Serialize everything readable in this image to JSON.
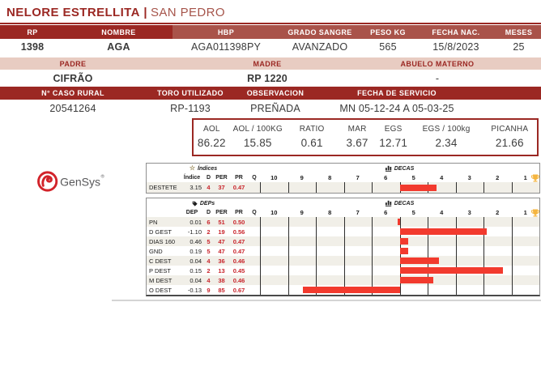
{
  "title": {
    "farm": "NELORE ESTRELLITA",
    "sep": "|",
    "location": "SAN PEDRO"
  },
  "animal_table": {
    "headers": [
      "RP",
      "NOMBRE",
      "HBP",
      "GRADO SANGRE",
      "PESO KG",
      "FECHA NAC.",
      "MESES"
    ],
    "values": [
      "1398",
      "AGA",
      "AGA011398PY",
      "AVANZADO",
      "565",
      "15/8/2023",
      "25"
    ]
  },
  "pedigree_table": {
    "headers": [
      "PADRE",
      "MADRE",
      "ABUELO MATERNO"
    ],
    "values": [
      "CIFRÃO",
      "RP 1220",
      "-"
    ]
  },
  "service_table": {
    "headers": [
      "N° CASO RURAL",
      "TORO UTILIZADO",
      "OBSERVACION",
      "FECHA DE SERVICIO"
    ],
    "values": [
      "20541264",
      "RP-1193",
      "PREÑADA",
      "MN 05-12-24 A 05-03-25"
    ]
  },
  "carcass_panel": {
    "headers": [
      "AOL",
      "AOL / 100KG",
      "RATIO",
      "MAR",
      "EGS",
      "EGS / 100kg",
      "PICANHA"
    ],
    "values": [
      "86.22",
      "15.85",
      "0.61",
      "3.67",
      "12.71",
      "2.34",
      "21.66"
    ]
  },
  "logo": {
    "text": "GenSys",
    "registered": "®"
  },
  "chart_data": [
    {
      "type": "bar",
      "title": "Índices DECAS",
      "categories": [
        "DESTETE"
      ],
      "values": [
        37
      ],
      "xlabel": "DECAS percentile (bars drawn from 50th percentile)",
      "xlim": [
        100,
        0
      ]
    },
    {
      "type": "bar",
      "title": "DEPs DECAS",
      "categories": [
        "PN",
        "D GEST",
        "DIAS 160",
        "GND",
        "C DEST",
        "P DEST",
        "M DEST",
        "O DEST"
      ],
      "values": [
        51,
        19,
        47,
        47,
        36,
        13,
        38,
        85
      ],
      "xlabel": "DECAS percentile (bars drawn from 50th percentile)",
      "xlim": [
        100,
        0
      ]
    }
  ],
  "indices_chart": {
    "section_label": "Índices",
    "decas_label": "DECAS",
    "columns": [
      "Índice",
      "D",
      "PER",
      "PR",
      "Q"
    ],
    "scale": [
      "10",
      "9",
      "8",
      "7",
      "6",
      "5",
      "4",
      "3",
      "2",
      "1"
    ],
    "rows": [
      {
        "label": "DESTETE",
        "value": "3.15",
        "d": "4",
        "per": 37,
        "pr": "0.47",
        "q": ""
      }
    ]
  },
  "deps_chart": {
    "section_label": "DEPs",
    "decas_label": "DECAS",
    "columns": [
      "DEP",
      "D",
      "PER",
      "PR",
      "Q"
    ],
    "scale": [
      "10",
      "9",
      "8",
      "7",
      "6",
      "5",
      "4",
      "3",
      "2",
      "1"
    ],
    "rows": [
      {
        "label": "PN",
        "value": "0.01",
        "d": "6",
        "per": 51,
        "pr": "0.50",
        "q": ""
      },
      {
        "label": "D GEST",
        "value": "-1.10",
        "d": "2",
        "per": 19,
        "pr": "0.56",
        "q": ""
      },
      {
        "label": "DIAS 160",
        "value": "0.46",
        "d": "5",
        "per": 47,
        "pr": "0.47",
        "q": ""
      },
      {
        "label": "GND",
        "value": "0.19",
        "d": "5",
        "per": 47,
        "pr": "0.47",
        "q": ""
      },
      {
        "label": "C DEST",
        "value": "0.04",
        "d": "4",
        "per": 36,
        "pr": "0.46",
        "q": ""
      },
      {
        "label": "P DEST",
        "value": "0.15",
        "d": "2",
        "per": 13,
        "pr": "0.45",
        "q": ""
      },
      {
        "label": "M DEST",
        "value": "0.04",
        "d": "4",
        "per": 38,
        "pr": "0.46",
        "q": ""
      },
      {
        "label": "O DEST",
        "value": "-0.13",
        "d": "9",
        "per": 85,
        "pr": "0.67",
        "q": ""
      }
    ]
  },
  "colors": {
    "maroon": "#9B2823",
    "brick": "#A9534A",
    "pink": "#E8CCC2",
    "bar_red": "#F23A2E",
    "stat_red_text": "#C9252C",
    "logo_red": "#D2232A"
  }
}
